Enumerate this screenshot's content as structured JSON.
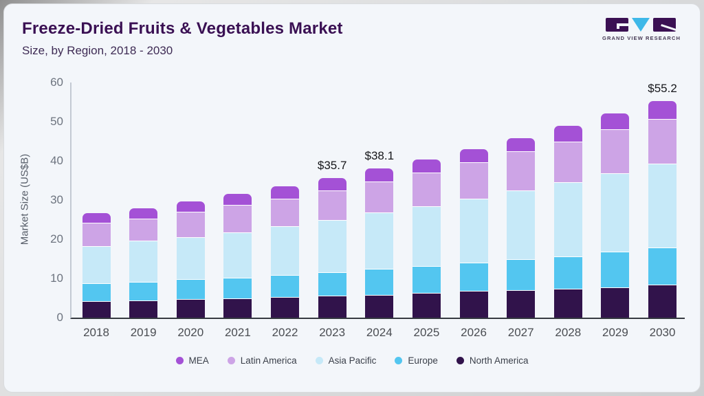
{
  "page": {
    "background_outer": "#cdcfd1",
    "card_background": "#f3f6fa"
  },
  "header": {
    "title": "Freeze-Dried Fruits & Vegetables Market",
    "subtitle": "Size, by Region, 2018 - 2030",
    "title_color": "#3a1053"
  },
  "branding": {
    "logo_text": "GRAND VIEW RESEARCH",
    "logo_dark_color": "#3b1053",
    "logo_cyan_color": "#3eb8e8"
  },
  "chart_data": {
    "type": "bar",
    "stacked": true,
    "title": "Freeze-Dried Fruits & Vegetables Market Size, by Region, 2018 - 2030",
    "xlabel": "",
    "ylabel": "Market Size (US$B)",
    "ylim": [
      0,
      60
    ],
    "yticks": [
      0,
      10,
      20,
      30,
      40,
      50,
      60
    ],
    "grid": false,
    "legend_position": "bottom",
    "categories": [
      2018,
      2019,
      2020,
      2021,
      2022,
      2023,
      2024,
      2025,
      2026,
      2027,
      2028,
      2029,
      2030
    ],
    "series": [
      {
        "name": "North America",
        "color": "#31134b",
        "values": [
          4.2,
          4.4,
          4.8,
          5.0,
          5.2,
          5.6,
          5.8,
          6.3,
          6.9,
          7.0,
          7.4,
          7.8,
          8.4
        ]
      },
      {
        "name": "Europe",
        "color": "#53c6f0",
        "values": [
          4.6,
          4.8,
          5.1,
          5.2,
          5.6,
          5.9,
          6.6,
          6.9,
          7.1,
          7.9,
          8.2,
          9.0,
          9.5
        ]
      },
      {
        "name": "Asia Pacific",
        "color": "#c6e9f8",
        "values": [
          9.5,
          10.5,
          10.7,
          11.6,
          12.5,
          13.5,
          14.5,
          15.2,
          16.4,
          17.5,
          19.0,
          20.0,
          21.4
        ]
      },
      {
        "name": "Latin America",
        "color": "#cda4e6",
        "values": [
          5.9,
          5.6,
          6.4,
          6.9,
          7.1,
          7.4,
          7.8,
          8.7,
          9.3,
          10.1,
          10.4,
          11.3,
          11.4
        ]
      },
      {
        "name": "MEA",
        "color": "#a451d6",
        "values": [
          2.4,
          2.6,
          2.6,
          2.8,
          3.2,
          3.3,
          3.4,
          3.2,
          3.3,
          3.3,
          3.9,
          4.0,
          4.5
        ]
      }
    ],
    "totals": [
      26.6,
      27.9,
      29.6,
      31.5,
      33.6,
      35.7,
      38.1,
      40.3,
      43.0,
      45.8,
      48.9,
      52.1,
      55.2
    ],
    "legend_order": [
      "MEA",
      "Latin America",
      "Asia Pacific",
      "Europe",
      "North America"
    ],
    "annotations": [
      {
        "category": 2023,
        "text": "$35.7"
      },
      {
        "category": 2024,
        "text": "$38.1"
      },
      {
        "category": 2030,
        "text": "$55.2"
      }
    ]
  }
}
